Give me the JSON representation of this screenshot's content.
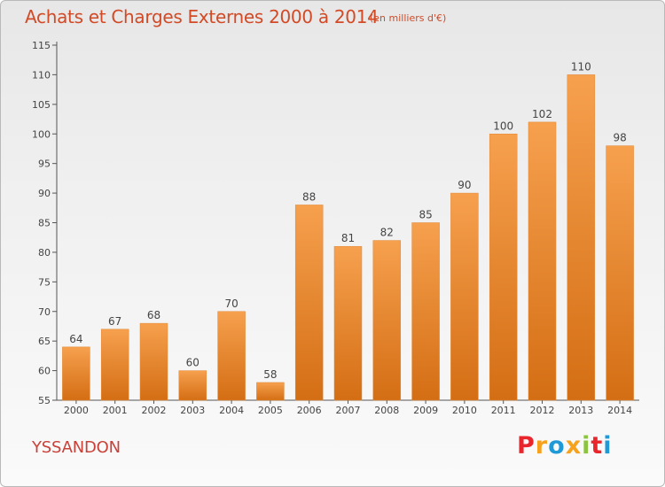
{
  "header": {
    "title": "Achats et Charges Externes 2000 à 2014",
    "subtitle": "(en milliers d'€)"
  },
  "footer": {
    "commune": "YSSANDON",
    "logo_letters": [
      "P",
      "r",
      "o",
      "x",
      "i",
      "t",
      "i"
    ],
    "logo_colors": [
      "#e8262c",
      "#f7a21c",
      "#1f9ad7",
      "#f7a21c",
      "#8cc43f",
      "#e8262c",
      "#1f9ad7"
    ]
  },
  "chart_data": {
    "type": "bar",
    "title": "Achats et Charges Externes 2000 à 2014",
    "subtitle": "(en milliers d'€)",
    "xlabel": "",
    "ylabel": "",
    "categories": [
      "2000",
      "2001",
      "2002",
      "2003",
      "2004",
      "2005",
      "2006",
      "2007",
      "2008",
      "2009",
      "2010",
      "2011",
      "2012",
      "2013",
      "2014"
    ],
    "values": [
      64,
      67,
      68,
      60,
      70,
      58,
      88,
      81,
      82,
      85,
      90,
      100,
      102,
      110,
      98
    ],
    "ylim": [
      55,
      115
    ],
    "yticks": [
      55,
      60,
      65,
      70,
      75,
      80,
      85,
      90,
      95,
      100,
      105,
      110,
      115
    ],
    "grid": false,
    "bar_color_top": "#f6a04e",
    "bar_color_bottom": "#d46e14"
  }
}
